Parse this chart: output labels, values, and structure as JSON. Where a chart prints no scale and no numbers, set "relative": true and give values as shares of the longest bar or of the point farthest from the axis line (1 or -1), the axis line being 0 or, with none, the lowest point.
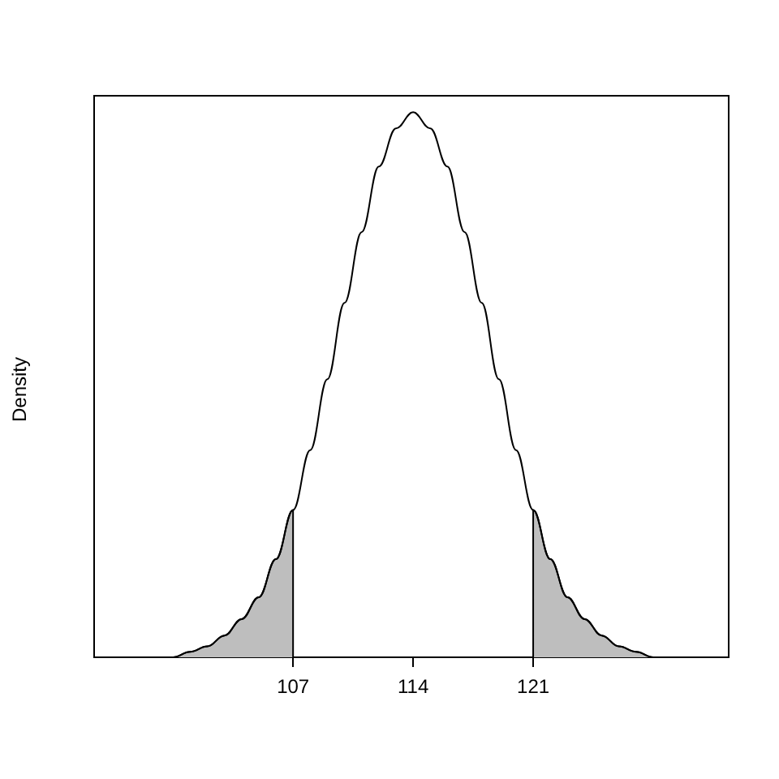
{
  "chart_data": {
    "type": "line",
    "ylabel": "Density",
    "relative": true,
    "xlim": [
      95.4,
      132.4
    ],
    "xticks": [
      107,
      114,
      121
    ],
    "grid": false,
    "marker": "none",
    "line_style": "solid",
    "series": [
      {
        "type": "line",
        "color": "#000000",
        "x": [
          97,
          98,
          99,
          100,
          101,
          102,
          103,
          104,
          105,
          106,
          107,
          108,
          109,
          110,
          111,
          112,
          113,
          114,
          115,
          116,
          117,
          118,
          119,
          120,
          121,
          122,
          123,
          124,
          125,
          126,
          127,
          128,
          129,
          130,
          131
        ],
        "values": [
          0,
          0,
          0,
          0,
          0.01,
          0.02,
          0.04,
          0.07,
          0.11,
          0.18,
          0.27,
          0.38,
          0.51,
          0.65,
          0.78,
          0.9,
          0.97,
          1,
          0.97,
          0.9,
          0.78,
          0.65,
          0.51,
          0.38,
          0.27,
          0.18,
          0.11,
          0.07,
          0.04,
          0.02,
          0.01,
          0,
          0,
          0,
          0
        ]
      },
      {
        "type": "area",
        "color": "#bebebe",
        "x": [
          97,
          98,
          99,
          100,
          101,
          102,
          103,
          104,
          105,
          106,
          107
        ],
        "values": [
          0,
          0,
          0,
          0,
          0.01,
          0.02,
          0.04,
          0.07,
          0.11,
          0.18,
          0.27
        ]
      },
      {
        "type": "area",
        "color": "#bebebe",
        "x": [
          121,
          122,
          123,
          124,
          125,
          126,
          127,
          128,
          129,
          130,
          131
        ],
        "values": [
          0.27,
          0.18,
          0.11,
          0.07,
          0.04,
          0.02,
          0.01,
          0,
          0,
          0,
          0
        ]
      }
    ]
  }
}
